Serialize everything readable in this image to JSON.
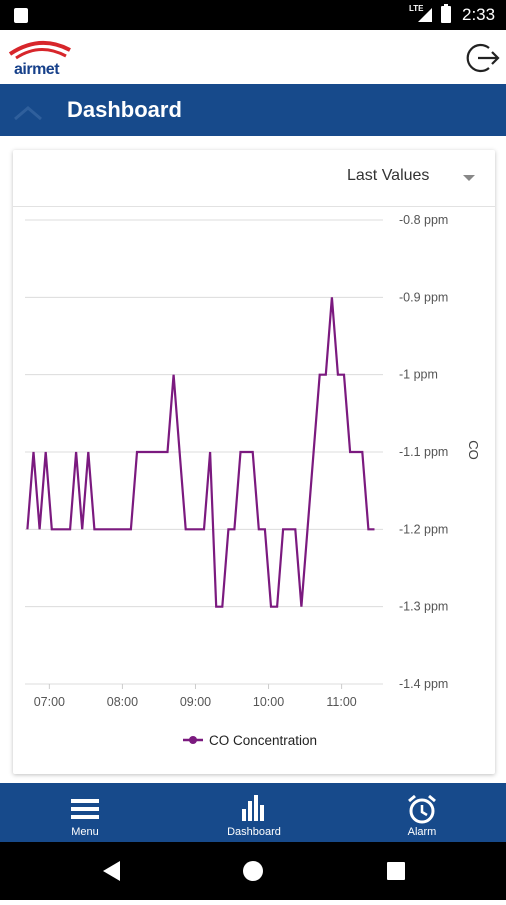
{
  "status_bar": {
    "time": "2:33",
    "network": "LTE"
  },
  "header": {
    "logo_text_a": "air",
    "logo_text_b": "met"
  },
  "title_bar": {
    "title": "Dashboard"
  },
  "card": {
    "range_select": "Last Values"
  },
  "chart_data": {
    "type": "line",
    "x": [
      "06:42",
      "06:47",
      "06:52",
      "06:57",
      "07:02",
      "07:07",
      "07:12",
      "07:17",
      "07:22",
      "07:27",
      "07:32",
      "07:37",
      "07:42",
      "07:47",
      "07:52",
      "07:57",
      "08:02",
      "08:07",
      "08:12",
      "08:17",
      "08:22",
      "08:27",
      "08:32",
      "08:37",
      "08:42",
      "08:47",
      "08:52",
      "08:57",
      "09:02",
      "09:07",
      "09:12",
      "09:17",
      "09:22",
      "09:27",
      "09:32",
      "09:37",
      "09:42",
      "09:47",
      "09:52",
      "09:57",
      "10:02",
      "10:07",
      "10:12",
      "10:17",
      "10:22",
      "10:27",
      "10:32",
      "10:37",
      "10:42",
      "10:47",
      "10:52",
      "10:57",
      "11:02",
      "11:07",
      "11:12",
      "11:17",
      "11:22",
      "11:27"
    ],
    "series": [
      {
        "name": "CO Concentration",
        "values": [
          -1.2,
          -1.1,
          -1.2,
          -1.1,
          -1.2,
          -1.2,
          -1.2,
          -1.2,
          -1.1,
          -1.2,
          -1.1,
          -1.2,
          -1.2,
          -1.2,
          -1.2,
          -1.2,
          -1.2,
          -1.2,
          -1.1,
          -1.1,
          -1.1,
          -1.1,
          -1.1,
          -1.1,
          -1.0,
          -1.1,
          -1.2,
          -1.2,
          -1.2,
          -1.2,
          -1.1,
          -1.3,
          -1.3,
          -1.2,
          -1.2,
          -1.1,
          -1.1,
          -1.1,
          -1.2,
          -1.2,
          -1.3,
          -1.3,
          -1.2,
          -1.2,
          -1.2,
          -1.3,
          -1.2,
          -1.1,
          -1.0,
          -1.0,
          -0.9,
          -1.0,
          -1.0,
          -1.1,
          -1.1,
          -1.1,
          -1.2,
          -1.2
        ],
        "color": "#7b1a7f"
      }
    ],
    "x_ticks": [
      "07:00",
      "08:00",
      "09:00",
      "10:00",
      "11:00"
    ],
    "y_ticks": [
      "-0.8 ppm",
      "-0.9 ppm",
      "-1 ppm",
      "-1.1 ppm",
      "-1.2 ppm",
      "-1.3 ppm",
      "-1.4 ppm"
    ],
    "ylim": [
      -1.4,
      -0.8
    ],
    "ylabel": "CO",
    "legend": "bottom-center",
    "grid": true
  },
  "bottom_nav": {
    "items": [
      {
        "label": "Menu",
        "icon": "menu-icon"
      },
      {
        "label": "Dashboard",
        "icon": "bar-chart-icon"
      },
      {
        "label": "Alarm",
        "icon": "alarm-clock-icon"
      }
    ]
  },
  "system_nav": {
    "icons": [
      "back-icon",
      "home-icon",
      "recents-icon"
    ]
  }
}
